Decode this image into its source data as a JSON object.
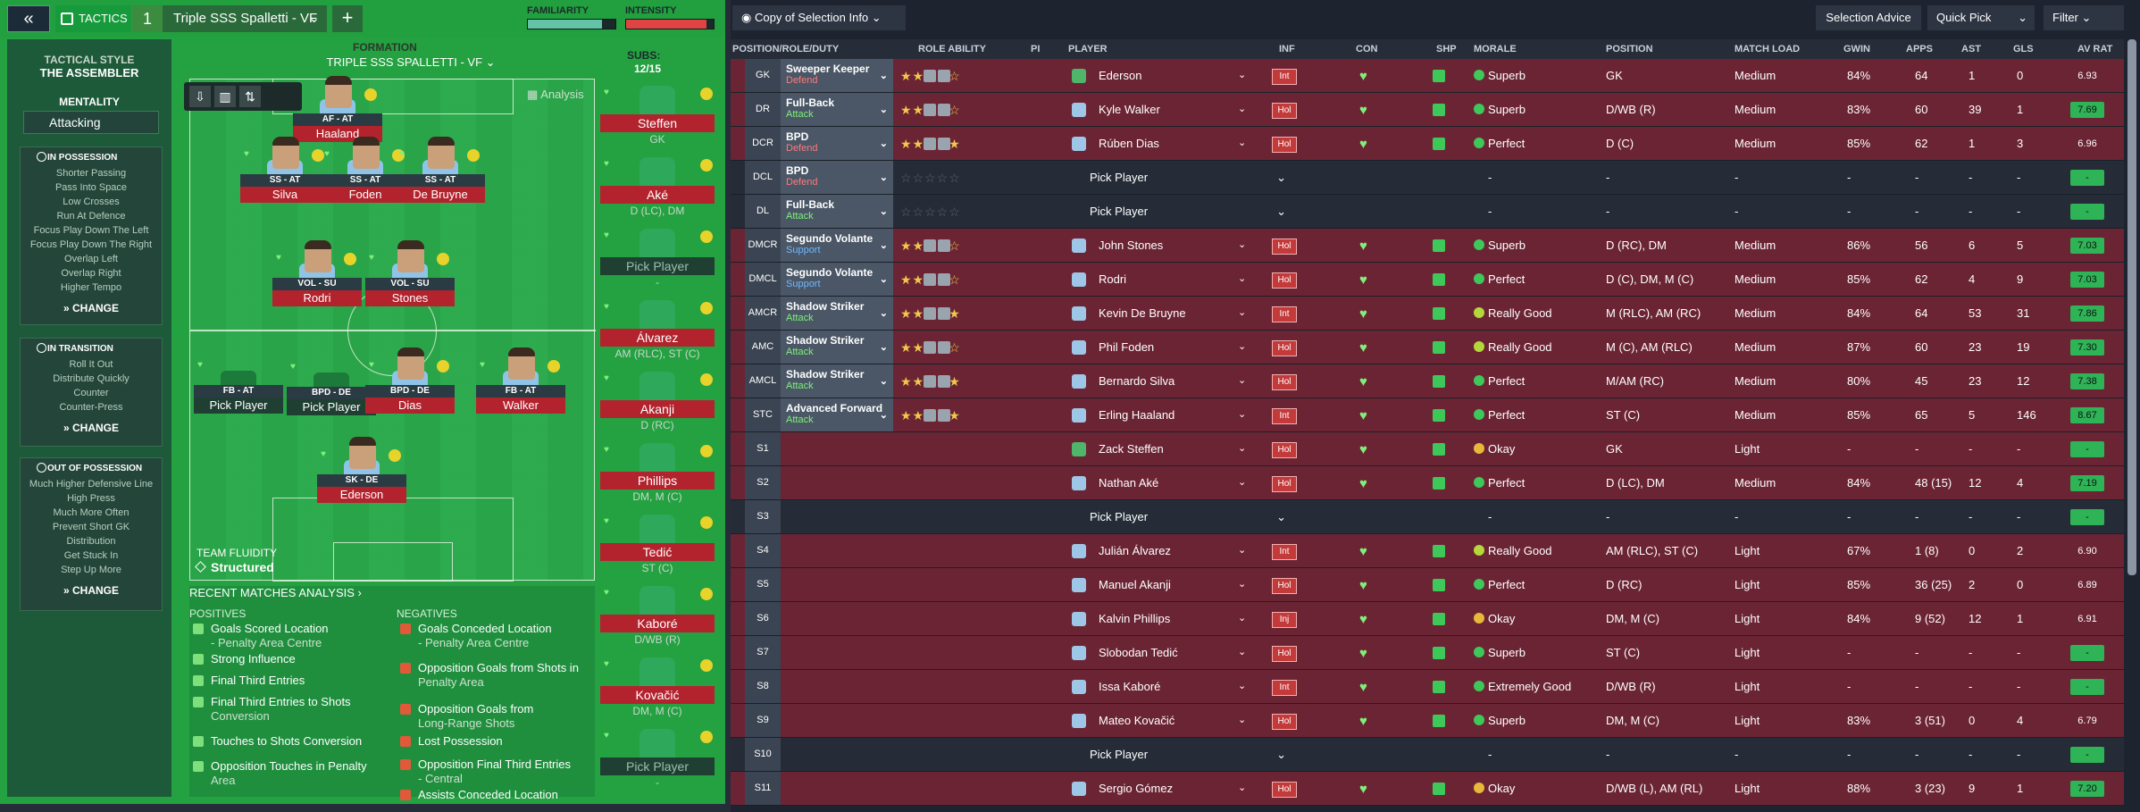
{
  "topbar": {
    "back_icon": "chevrons-left-icon",
    "tactics_tab": "TACTICS",
    "slot_number": "1",
    "tactic_name": "Triple SSS Spalletti - VF",
    "add_icon": "plus-icon",
    "familiarity_label": "FAMILIARITY",
    "familiarity_level": 0.85,
    "intensity_label": "INTENSITY",
    "intensity_level": 0.92
  },
  "sidebar": {
    "tactical_style_label": "TACTICAL STYLE",
    "tactical_style": "THE ASSEMBLER",
    "mentality_label": "MENTALITY",
    "mentality": "Attacking",
    "in_possession": {
      "title": "IN POSSESSION",
      "items": [
        "Shorter Passing",
        "Pass Into Space",
        "Low Crosses",
        "Run At Defence",
        "Focus Play Down The Left",
        "Focus Play Down The Right",
        "Overlap Left",
        "Overlap Right",
        "Higher Tempo"
      ],
      "change": "CHANGE"
    },
    "in_transition": {
      "title": "IN TRANSITION",
      "items": [
        "Roll It Out",
        "Distribute Quickly",
        "Counter",
        "Counter-Press"
      ],
      "change": "CHANGE"
    },
    "out_of_possession": {
      "title": "OUT OF POSSESSION",
      "items": [
        "Much Higher Defensive Line",
        "High Press",
        "Much More Often",
        "Prevent Short GK",
        "Distribution",
        "Get Stuck In",
        "Step Up More"
      ],
      "change": "CHANGE"
    }
  },
  "formation": {
    "label": "FORMATION",
    "value": "TRIPLE SSS SPALLETTI - VF",
    "subs_label": "SUBS:",
    "subs_value": "12/15",
    "analysis": "Analysis",
    "fluidity_label": "TEAM FLUIDITY",
    "fluidity": "Structured"
  },
  "pitch_players": [
    {
      "role": "AF - AT",
      "name": "Haaland"
    },
    {
      "role": "SS - AT",
      "name": "Silva"
    },
    {
      "role": "SS - AT",
      "name": "Foden"
    },
    {
      "role": "SS - AT",
      "name": "De Bruyne"
    },
    {
      "role": "VOL - SU",
      "name": "Rodri"
    },
    {
      "role": "VOL - SU",
      "name": "Stones"
    },
    {
      "role": "FB - AT",
      "name": "Pick Player"
    },
    {
      "role": "BPD - DE",
      "name": "Pick Player"
    },
    {
      "role": "BPD - DE",
      "name": "Dias"
    },
    {
      "role": "FB - AT",
      "name": "Walker"
    },
    {
      "role": "SK - DE",
      "name": "Ederson"
    }
  ],
  "subs": [
    {
      "name": "Steffen",
      "pos": "GK"
    },
    {
      "name": "Aké",
      "pos": "D (LC), DM"
    },
    {
      "name": "Pick Player",
      "pos": "-"
    },
    {
      "name": "Álvarez",
      "pos": "AM (RLC), ST (C)"
    },
    {
      "name": "Akanji",
      "pos": "D (RC)"
    },
    {
      "name": "Phillips",
      "pos": "DM, M (C)"
    },
    {
      "name": "Tedić",
      "pos": "ST (C)"
    },
    {
      "name": "Kaboré",
      "pos": "D/WB (R)"
    },
    {
      "name": "Kovačić",
      "pos": "DM, M (C)"
    },
    {
      "name": "Pick Player",
      "pos": "-"
    }
  ],
  "recent": {
    "title": "RECENT MATCHES ANALYSIS",
    "positives_label": "POSITIVES",
    "negatives_label": "NEGATIVES",
    "positives": [
      [
        "Goals Scored Location",
        "- Penalty Area Centre"
      ],
      [
        "Strong Influence",
        ""
      ],
      [
        "Final Third Entries",
        ""
      ],
      [
        "Final Third Entries to Shots",
        "Conversion"
      ],
      [
        "Touches to Shots Conversion",
        ""
      ],
      [
        "Opposition Touches in Penalty",
        "Area"
      ]
    ],
    "negatives": [
      [
        "Goals Conceded Location",
        "- Penalty Area Centre"
      ],
      [
        "Opposition Goals from Shots in",
        "Penalty Area"
      ],
      [
        "Opposition Goals from",
        "Long-Range Shots"
      ],
      [
        "Lost Possession",
        ""
      ],
      [
        "Opposition Final Third Entries",
        "- Central"
      ],
      [
        "Assists Conceded Location",
        ""
      ]
    ]
  },
  "right_toolbar": {
    "view": "Copy of Selection Info",
    "selection_advice": "Selection Advice",
    "quick_pick": "Quick Pick",
    "filter": "Filter"
  },
  "columns": [
    "POSITION/ROLE/DUTY",
    "ROLE ABILITY",
    "PI",
    "PLAYER",
    "INF",
    "CON",
    "SHP",
    "MORALE",
    "POSITION",
    "MATCH LOAD",
    "GWIN",
    "APPS",
    "AST",
    "GLS",
    "AV RAT"
  ],
  "rows": [
    {
      "slot": "GK",
      "role": "Sweeper Keeper",
      "duty": "Defend",
      "stars": 3.5,
      "player": "Ederson",
      "inf": "Int",
      "morale": "Superb",
      "position": "GK",
      "load": "Medium",
      "gwin": "84%",
      "apps": "64",
      "ast": "1",
      "gls": "0",
      "rat": "6.93"
    },
    {
      "slot": "DR",
      "role": "Full-Back",
      "duty": "Attack",
      "stars": 4,
      "player": "Kyle Walker",
      "inf": "Hol",
      "morale": "Superb",
      "position": "D/WB (R)",
      "load": "Medium",
      "gwin": "83%",
      "apps": "60",
      "ast": "39",
      "gls": "1",
      "rat": "7.69"
    },
    {
      "slot": "DCR",
      "role": "BPD",
      "duty": "Defend",
      "stars": 4.5,
      "player": "Rúben Dias",
      "inf": "Hol",
      "morale": "Perfect",
      "position": "D (C)",
      "load": "Medium",
      "gwin": "85%",
      "apps": "62",
      "ast": "1",
      "gls": "3",
      "rat": "6.96"
    },
    {
      "slot": "DCL",
      "role": "BPD",
      "duty": "Defend",
      "stars": 0,
      "player": "Pick Player",
      "inf": "",
      "morale": "-",
      "position": "-",
      "load": "-",
      "gwin": "-",
      "apps": "-",
      "ast": "-",
      "gls": "-",
      "rat": "-"
    },
    {
      "slot": "DL",
      "role": "Full-Back",
      "duty": "Attack",
      "stars": 0,
      "player": "Pick Player",
      "inf": "",
      "morale": "-",
      "position": "-",
      "load": "-",
      "gwin": "-",
      "apps": "-",
      "ast": "-",
      "gls": "-",
      "rat": "-"
    },
    {
      "slot": "DMCR",
      "role": "Segundo Volante",
      "duty": "Support",
      "stars": 3.5,
      "player": "John Stones",
      "inf": "Hol",
      "morale": "Superb",
      "position": "D (RC), DM",
      "load": "Medium",
      "gwin": "86%",
      "apps": "56",
      "ast": "6",
      "gls": "5",
      "rat": "7.03"
    },
    {
      "slot": "DMCL",
      "role": "Segundo Volante",
      "duty": "Support",
      "stars": 4,
      "player": "Rodri",
      "inf": "Hol",
      "morale": "Perfect",
      "position": "D (C), DM, M (C)",
      "load": "Medium",
      "gwin": "85%",
      "apps": "62",
      "ast": "4",
      "gls": "9",
      "rat": "7.03"
    },
    {
      "slot": "AMCR",
      "role": "Shadow Striker",
      "duty": "Attack",
      "stars": 4.5,
      "player": "Kevin De Bruyne",
      "inf": "Int",
      "morale": "Really Good",
      "position": "M (RLC), AM (RC)",
      "load": "Medium",
      "gwin": "84%",
      "apps": "64",
      "ast": "53",
      "gls": "31",
      "rat": "7.86"
    },
    {
      "slot": "AMC",
      "role": "Shadow Striker",
      "duty": "Attack",
      "stars": 4,
      "player": "Phil Foden",
      "inf": "Hol",
      "morale": "Really Good",
      "position": "M (C), AM (RLC)",
      "load": "Medium",
      "gwin": "87%",
      "apps": "60",
      "ast": "23",
      "gls": "19",
      "rat": "7.30"
    },
    {
      "slot": "AMCL",
      "role": "Shadow Striker",
      "duty": "Attack",
      "stars": 5,
      "player": "Bernardo Silva",
      "inf": "Hol",
      "morale": "Perfect",
      "position": "M/AM (RC)",
      "load": "Medium",
      "gwin": "80%",
      "apps": "45",
      "ast": "23",
      "gls": "12",
      "rat": "7.38"
    },
    {
      "slot": "STC",
      "role": "Advanced Forward",
      "duty": "Attack",
      "stars": 5,
      "player": "Erling Haaland",
      "inf": "Int",
      "morale": "Perfect",
      "position": "ST (C)",
      "load": "Medium",
      "gwin": "85%",
      "apps": "65",
      "ast": "5",
      "gls": "146",
      "rat": "8.67"
    },
    {
      "slot": "S1",
      "role": "",
      "duty": "",
      "stars": -1,
      "player": "Zack Steffen",
      "inf": "Hol",
      "morale": "Okay",
      "position": "GK",
      "load": "Light",
      "gwin": "-",
      "apps": "-",
      "ast": "-",
      "gls": "-",
      "rat": "-"
    },
    {
      "slot": "S2",
      "role": "",
      "duty": "",
      "stars": -1,
      "player": "Nathan Aké",
      "inf": "Hol",
      "morale": "Perfect",
      "position": "D (LC), DM",
      "load": "Medium",
      "gwin": "84%",
      "apps": "48 (15)",
      "ast": "12",
      "gls": "4",
      "rat": "7.19"
    },
    {
      "slot": "S3",
      "role": "",
      "duty": "",
      "stars": -1,
      "player": "Pick Player",
      "inf": "",
      "morale": "-",
      "position": "-",
      "load": "-",
      "gwin": "-",
      "apps": "-",
      "ast": "-",
      "gls": "-",
      "rat": "-"
    },
    {
      "slot": "S4",
      "role": "",
      "duty": "",
      "stars": -1,
      "player": "Julián Álvarez",
      "inf": "Int",
      "morale": "Really Good",
      "position": "AM (RLC), ST (C)",
      "load": "Light",
      "gwin": "67%",
      "apps": "1 (8)",
      "ast": "0",
      "gls": "2",
      "rat": "6.90"
    },
    {
      "slot": "S5",
      "role": "",
      "duty": "",
      "stars": -1,
      "player": "Manuel Akanji",
      "inf": "Hol",
      "morale": "Perfect",
      "position": "D (RC)",
      "load": "Light",
      "gwin": "85%",
      "apps": "36 (25)",
      "ast": "2",
      "gls": "0",
      "rat": "6.89"
    },
    {
      "slot": "S6",
      "role": "",
      "duty": "",
      "stars": -1,
      "player": "Kalvin Phillips",
      "inf": "Inj",
      "morale": "Okay",
      "position": "DM, M (C)",
      "load": "Light",
      "gwin": "84%",
      "apps": "9 (52)",
      "ast": "12",
      "gls": "1",
      "rat": "6.91"
    },
    {
      "slot": "S7",
      "role": "",
      "duty": "",
      "stars": -1,
      "player": "Slobodan Tedić",
      "inf": "Hol",
      "morale": "Superb",
      "position": "ST (C)",
      "load": "Light",
      "gwin": "-",
      "apps": "-",
      "ast": "-",
      "gls": "-",
      "rat": "-"
    },
    {
      "slot": "S8",
      "role": "",
      "duty": "",
      "stars": -1,
      "player": "Issa Kaboré",
      "inf": "Int",
      "morale": "Extremely Good",
      "position": "D/WB (R)",
      "load": "Light",
      "gwin": "-",
      "apps": "-",
      "ast": "-",
      "gls": "-",
      "rat": "-"
    },
    {
      "slot": "S9",
      "role": "",
      "duty": "",
      "stars": -1,
      "player": "Mateo Kovačić",
      "inf": "Hol",
      "morale": "Superb",
      "position": "DM, M (C)",
      "load": "Light",
      "gwin": "83%",
      "apps": "3 (51)",
      "ast": "0",
      "gls": "4",
      "rat": "6.79"
    },
    {
      "slot": "S10",
      "role": "",
      "duty": "",
      "stars": -1,
      "player": "Pick Player",
      "inf": "",
      "morale": "-",
      "position": "-",
      "load": "-",
      "gwin": "-",
      "apps": "-",
      "ast": "-",
      "gls": "-",
      "rat": "-"
    },
    {
      "slot": "S11",
      "role": "",
      "duty": "",
      "stars": -1,
      "player": "Sergio Gómez",
      "inf": "Hol",
      "morale": "Okay",
      "position": "D/WB (L), AM (RL)",
      "load": "Light",
      "gwin": "88%",
      "apps": "3 (23)",
      "ast": "9",
      "gls": "1",
      "rat": "7.20"
    }
  ],
  "colors": {
    "accent_green": "#24a141",
    "dark_bg": "#1d2430",
    "row_red": "#6b2434",
    "rating_green": "#2eb356"
  }
}
